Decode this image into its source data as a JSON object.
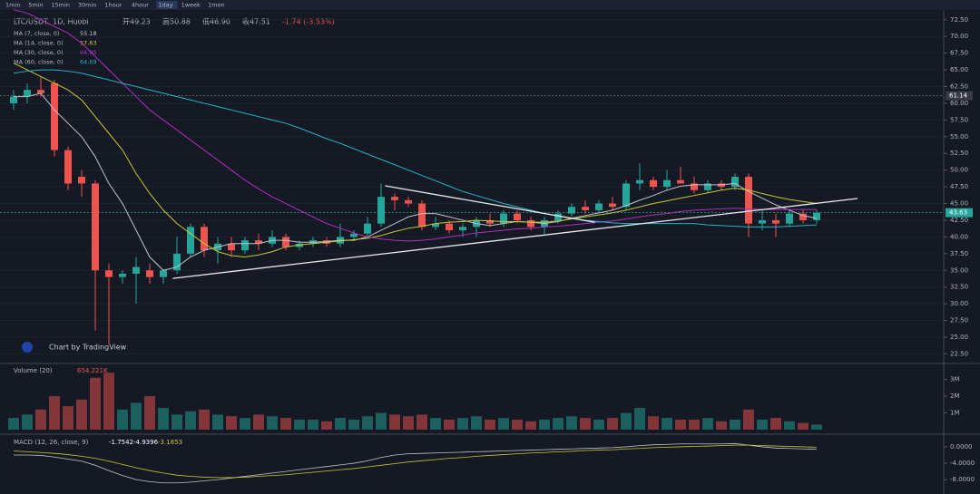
{
  "toolbar": {
    "intervals": [
      "1min",
      "5min",
      "15min",
      "30min",
      "1hour",
      "4hour",
      "1day",
      "1week",
      "1mon"
    ],
    "active": 6
  },
  "chart_data": {
    "type": "candlestick",
    "title": "LTC/USDT, 1D, Huobi",
    "ohlc_header": [
      "开49.23",
      "高50.88",
      "低46.90",
      "收47.51",
      "-1.74 (-3.53%)"
    ],
    "watermark": "Chart by TradingView",
    "up_color": "#26a69a",
    "down_color": "#ef5350",
    "open": [
      60,
      61,
      62,
      63,
      53,
      49,
      48,
      35,
      34,
      34.5,
      35,
      34,
      35,
      37.5,
      41.5,
      38,
      39,
      38,
      39.5,
      39,
      40,
      38.5,
      39,
      39.5,
      39,
      40,
      40.5,
      42,
      46,
      45.5,
      45,
      41.5,
      42,
      41,
      41.5,
      42.5,
      42,
      43.5,
      42.5,
      41.5,
      42.5,
      43.5,
      44.5,
      44,
      45,
      44.5,
      48,
      48.5,
      47.5,
      48.5,
      48,
      47,
      48,
      47.5,
      49,
      42,
      42.5,
      42,
      43.5,
      42.5
    ],
    "high": [
      62,
      63,
      64,
      63.5,
      53.5,
      50,
      48.5,
      36,
      35,
      37,
      36,
      35,
      40,
      42,
      42,
      40,
      40,
      40,
      40.5,
      41,
      40.5,
      39.5,
      40,
      40,
      42,
      41,
      43,
      48,
      46.5,
      46,
      45.5,
      43,
      42.5,
      42,
      43,
      43.5,
      44,
      44,
      43,
      43,
      44,
      45,
      45.5,
      45.5,
      46,
      48.5,
      51,
      49,
      50,
      50.5,
      49,
      48.5,
      48.5,
      49.5,
      49.5,
      44,
      43.5,
      44,
      44,
      44
    ],
    "low": [
      59,
      60,
      61,
      52,
      47,
      46,
      26,
      24,
      33,
      30,
      33,
      33,
      34.5,
      37,
      37,
      36,
      37,
      37.5,
      38,
      38.5,
      38,
      38,
      38.5,
      38.5,
      38.5,
      39.5,
      40,
      41.5,
      44,
      44.5,
      41,
      41,
      40.5,
      40,
      40,
      41.5,
      41.5,
      42,
      41,
      40.5,
      42,
      43,
      43.5,
      43.5,
      44,
      44,
      47,
      47,
      47,
      48,
      46.5,
      46.5,
      47,
      47,
      40,
      41,
      40,
      41.5,
      42,
      42
    ],
    "close": [
      61,
      62,
      61.5,
      53,
      48,
      48,
      35,
      34,
      34.5,
      35.5,
      34,
      35,
      37.5,
      41.5,
      38,
      39,
      38,
      39.5,
      39,
      40,
      38.5,
      39,
      39.5,
      39,
      40,
      40.5,
      42,
      46,
      45.5,
      45,
      41.5,
      42,
      41,
      41.5,
      42.5,
      42,
      43.5,
      42.5,
      41.5,
      42.5,
      43.5,
      44.5,
      44,
      45,
      44.5,
      48,
      48.5,
      47.5,
      48.5,
      48,
      47,
      48,
      47.5,
      49,
      42,
      42.5,
      42,
      43.5,
      42.5,
      43.63
    ],
    "ylim": [
      21.2,
      74.1
    ],
    "yticks": [
      {
        "value": 22.5,
        "label": "22.50"
      },
      {
        "value": 25,
        "label": "25.00"
      },
      {
        "value": 27.5,
        "label": "27.50"
      },
      {
        "value": 30,
        "label": "30.00"
      },
      {
        "value": 32.5,
        "label": "32.50"
      },
      {
        "value": 35,
        "label": "35.00"
      },
      {
        "value": 37.5,
        "label": "37.50"
      },
      {
        "value": 40,
        "label": "40.00"
      },
      {
        "value": 42.5,
        "label": "42.50"
      },
      {
        "value": 45,
        "label": "45.00"
      },
      {
        "value": 47.5,
        "label": "47.50"
      },
      {
        "value": 50,
        "label": "50.00"
      },
      {
        "value": 52.5,
        "label": "52.50"
      },
      {
        "value": 55,
        "label": "55.00"
      },
      {
        "value": 57.5,
        "label": "57.50"
      },
      {
        "value": 60,
        "label": "60.00"
      },
      {
        "value": 62.5,
        "label": "62.50"
      },
      {
        "value": 65,
        "label": "65.00"
      },
      {
        "value": 67.5,
        "label": "67.50"
      },
      {
        "value": 70,
        "label": "70.00"
      },
      {
        "value": 72.5,
        "label": "72.50"
      }
    ],
    "marker_price": 61.14,
    "last_price": 43.63,
    "moving_averages": [
      {
        "name": "MA (7, close, 0)",
        "value_label": "55.18",
        "color": "#c0c4cc",
        "values": [
          61,
          61,
          61.5,
          59,
          57,
          55,
          52,
          48,
          45,
          41,
          37,
          35,
          35.5,
          37,
          38,
          38.5,
          39,
          39,
          39,
          39.5,
          39.5,
          39.2,
          39.2,
          39.3,
          39.5,
          39.5,
          40,
          41,
          42,
          43,
          43.5,
          43.5,
          43,
          42.5,
          42,
          41.7,
          42,
          42.3,
          42.2,
          42,
          42.3,
          42.8,
          43.2,
          43.6,
          44,
          44.7,
          45.5,
          46.2,
          47,
          47.6,
          47.8,
          47.8,
          47.8,
          48,
          46.8,
          45.8,
          44.8,
          44,
          43.2,
          42.8
        ]
      },
      {
        "name": "MA (14, close, 0)",
        "value_label": "57.63",
        "color": "#c8c832",
        "values": [
          66,
          65,
          64,
          63,
          62,
          60.5,
          58,
          55.5,
          53,
          49.5,
          46.5,
          44,
          42,
          40.5,
          39,
          37.8,
          37.2,
          37,
          37.3,
          37.8,
          38.5,
          38.8,
          39,
          39.2,
          39.4,
          39.6,
          39.8,
          40.2,
          40.8,
          41.3,
          41.6,
          42,
          42.2,
          42.3,
          42.5,
          42.4,
          42.3,
          42.3,
          42.2,
          42.2,
          42.4,
          42.7,
          43,
          43.3,
          43.6,
          44,
          44.5,
          45,
          45.4,
          45.8,
          46.2,
          46.6,
          47,
          47.3,
          47,
          46.5,
          46,
          45.6,
          45.3,
          45
        ]
      },
      {
        "name": "MA (30, close, 0)",
        "value_label": "66.95",
        "color": "#b02fc0",
        "values": [
          74,
          73.5,
          72.5,
          71.5,
          70.5,
          69,
          67,
          65,
          63,
          61,
          59,
          57.5,
          56,
          54.5,
          53,
          51.5,
          50,
          48.5,
          47.2,
          46,
          45,
          44,
          43,
          42,
          41.3,
          40.6,
          40,
          39.7,
          39.5,
          39.4,
          39.5,
          39.7,
          40,
          40.3,
          40.6,
          40.8,
          41,
          41.2,
          41.3,
          41.5,
          41.6,
          41.8,
          42,
          42.2,
          42.4,
          42.7,
          43,
          43.3,
          43.5,
          43.8,
          44,
          44.1,
          44.2,
          44.3,
          44.2,
          44.1,
          44.1,
          44.1,
          44.1,
          44.1
        ]
      },
      {
        "name": "MA (60, close, 0)",
        "value_label": "64.69",
        "color": "#1fb5c4",
        "values": [
          64.5,
          64.8,
          65,
          65,
          64.8,
          64.5,
          64,
          63.5,
          63,
          62.5,
          62,
          61.5,
          61,
          60.5,
          60,
          59.5,
          59,
          58.5,
          58,
          57.5,
          57,
          56.3,
          55.5,
          54.7,
          54,
          53.2,
          52.4,
          51.6,
          50.8,
          50,
          49.2,
          48.4,
          47.6,
          46.8,
          46.2,
          45.6,
          45,
          44.5,
          44,
          43.5,
          43.1,
          42.8,
          42.5,
          42.3,
          42.1,
          42,
          42,
          42,
          42,
          42,
          42,
          41.8,
          41.7,
          41.6,
          41.5,
          41.5,
          41.5,
          41.6,
          41.7,
          41.8
        ]
      }
    ],
    "trendlines": [
      {
        "from": [
          11.7,
          33.8
        ],
        "to": [
          62,
          45.75
        ]
      },
      {
        "from": [
          27.3,
          47.65
        ],
        "to": [
          42.7,
          42.2
        ]
      }
    ],
    "volume": {
      "legend": "Volume (20)",
      "value_label": "654.221K",
      "values": [
        700000,
        900000,
        1200000,
        2000000,
        1400000,
        1800000,
        3100000,
        3400000,
        1200000,
        1600000,
        2000000,
        1300000,
        900000,
        1100000,
        1200000,
        900000,
        800000,
        700000,
        900000,
        800000,
        700000,
        600000,
        600000,
        500000,
        700000,
        600000,
        800000,
        1000000,
        900000,
        800000,
        900000,
        700000,
        600000,
        700000,
        800000,
        600000,
        700000,
        600000,
        500000,
        600000,
        700000,
        800000,
        700000,
        600000,
        700000,
        1000000,
        1300000,
        800000,
        700000,
        600000,
        600000,
        700000,
        500000,
        600000,
        1200000,
        600000,
        700000,
        500000,
        400000,
        300000
      ],
      "ylim": [
        0,
        3900000
      ],
      "yticks": [
        {
          "value": 1000000,
          "label": "1M"
        },
        {
          "value": 2000000,
          "label": "2M"
        },
        {
          "value": 3000000,
          "label": "3M"
        }
      ]
    },
    "macd": {
      "legend": "MACD (12, 26, close, 9)",
      "value_labels": [
        "-1.7542",
        "-4.9396",
        "-3.1853"
      ],
      "macd_color": "#c0c4cc",
      "signal_color": "#c8c832",
      "macd": [
        -2,
        -2,
        -2.1,
        -2.5,
        -3,
        -3.5,
        -4.5,
        -5.8,
        -7,
        -8,
        -8.5,
        -8.8,
        -8.8,
        -8.6,
        -8.3,
        -8,
        -7.6,
        -7.2,
        -6.8,
        -6.4,
        -6,
        -5.6,
        -5.2,
        -4.8,
        -4.4,
        -4,
        -3.4,
        -2.6,
        -2,
        -1.7,
        -1.6,
        -1.5,
        -1.4,
        -1.3,
        -1.2,
        -1.1,
        -1,
        -0.9,
        -0.8,
        -0.7,
        -0.6,
        -0.5,
        -0.4,
        -0.3,
        -0.2,
        0,
        0.3,
        0.5,
        0.6,
        0.7,
        0.7,
        0.7,
        0.7,
        0.8,
        0.4,
        0,
        -0.3,
        -0.4,
        -0.5,
        -0.6
      ],
      "signal": [
        -1,
        -1.2,
        -1.4,
        -1.6,
        -1.9,
        -2.3,
        -2.8,
        -3.5,
        -4.3,
        -5.1,
        -5.8,
        -6.4,
        -6.9,
        -7.2,
        -7.4,
        -7.5,
        -7.5,
        -7.4,
        -7.2,
        -7,
        -6.8,
        -6.5,
        -6.2,
        -5.9,
        -5.6,
        -5.3,
        -4.9,
        -4.5,
        -4.1,
        -3.7,
        -3.4,
        -3.1,
        -2.8,
        -2.6,
        -2.3,
        -2.1,
        -1.9,
        -1.7,
        -1.5,
        -1.4,
        -1.2,
        -1.1,
        -0.9,
        -0.8,
        -0.7,
        -0.5,
        -0.4,
        -0.2,
        -0.1,
        0,
        0.1,
        0.2,
        0.3,
        0.4,
        0.4,
        0.3,
        0.2,
        0.1,
        0,
        -0.1
      ],
      "ylim": [
        -10.4,
        2.2
      ],
      "yticks": [
        {
          "value": 0,
          "label": "0.0000"
        },
        {
          "value": -4,
          "label": "-4.0000"
        },
        {
          "value": -8,
          "label": "-8.0000"
        }
      ]
    }
  }
}
